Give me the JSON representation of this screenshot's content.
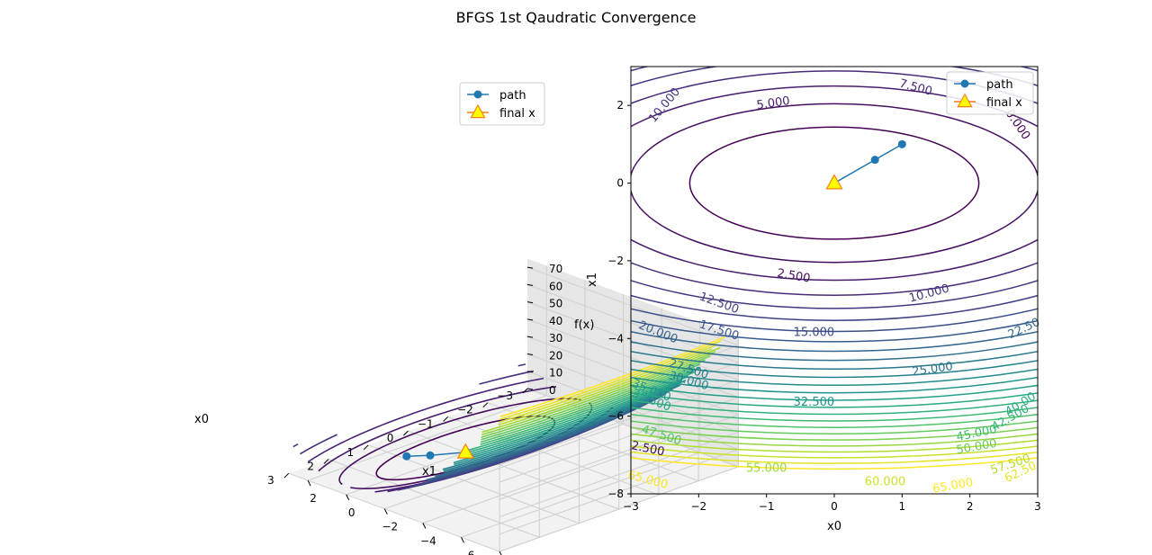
{
  "figure": {
    "title": "BFGS 1st Qaudratic Convergence"
  },
  "colors": {
    "path": "#1f77b4",
    "final_fill": "#ffff00",
    "final_edge": "#ff7f0e",
    "viridis": [
      "#440154",
      "#482878",
      "#3e4989",
      "#31688e",
      "#26828e",
      "#1f9e89",
      "#35b779",
      "#6ece58",
      "#b5de2b",
      "#fde725"
    ]
  },
  "chart_data": [
    {
      "type": "surface3d",
      "xlabel": "x0",
      "ylabel": "x1",
      "zlabel": "f(x)",
      "xlim": [
        -3,
        3
      ],
      "ylim": [
        -8,
        3
      ],
      "zlim": [
        0,
        75
      ],
      "x_ticks": [
        "−3",
        "−2",
        "−1",
        "0",
        "1",
        "2",
        "3"
      ],
      "y_ticks": [
        "−8",
        "−6",
        "−4",
        "−2",
        "0",
        "2"
      ],
      "z_ticks": [
        "0",
        "10",
        "20",
        "30",
        "40",
        "50",
        "60",
        "70"
      ],
      "path": {
        "x0": [
          1.0,
          0.6,
          0.0
        ],
        "x1": [
          1.0,
          0.6,
          0.0
        ]
      },
      "legend": [
        "path",
        "final x"
      ],
      "legend_position": "upper-right"
    },
    {
      "type": "contour",
      "xlabel": "x0",
      "ylabel": "x1",
      "xlim": [
        -3,
        3
      ],
      "ylim": [
        -8,
        3
      ],
      "x_ticks": [
        "−3",
        "−2",
        "−1",
        "0",
        "1",
        "2",
        "3"
      ],
      "y_ticks": [
        "−8",
        "−6",
        "−4",
        "−2",
        "0",
        "2"
      ],
      "levels": [
        2.5,
        5,
        7.5,
        10,
        12.5,
        15,
        17.5,
        20,
        22.5,
        25,
        27.5,
        30,
        32.5,
        35,
        37.5,
        40,
        42.5,
        45,
        47.5,
        50,
        52.5,
        55,
        57.5,
        60,
        62.5,
        65
      ],
      "labels": [
        {
          "text": "2.500",
          "x0": -0.6,
          "x1": -2.4,
          "rot": 10
        },
        {
          "text": "5.000",
          "x0": -0.9,
          "x1": 2.05,
          "rot": -8
        },
        {
          "text": "7.500",
          "x0": 1.2,
          "x1": 2.45,
          "rot": 15
        },
        {
          "text": "10.000",
          "x0": -2.5,
          "x1": 2.0,
          "rot": -50
        },
        {
          "text": "10.000",
          "x0": 1.4,
          "x1": -2.85,
          "rot": -15
        },
        {
          "text": "0.000",
          "x0": 2.7,
          "x1": 1.5,
          "rot": 55
        },
        {
          "text": "12.500",
          "x0": -1.7,
          "x1": -3.1,
          "rot": 20
        },
        {
          "text": "15.000",
          "x0": -0.3,
          "x1": -3.85,
          "rot": 0
        },
        {
          "text": "17.500",
          "x0": -1.7,
          "x1": -3.8,
          "rot": 18
        },
        {
          "text": "20.000",
          "x0": -2.6,
          "x1": -3.85,
          "rot": 22
        },
        {
          "text": "22.50",
          "x0": 2.8,
          "x1": -3.75,
          "rot": -25
        },
        {
          "text": "25.000",
          "x0": 1.45,
          "x1": -4.8,
          "rot": -8
        },
        {
          "text": "27.500",
          "x0": -2.15,
          "x1": -4.8,
          "rot": 18
        },
        {
          "text": "30.000",
          "x0": -2.15,
          "x1": -5.1,
          "rot": 16
        },
        {
          "text": "32.500",
          "x0": -0.3,
          "x1": -5.65,
          "rot": 0
        },
        {
          "text": "35.000",
          "x0": -2.7,
          "x1": -5.35,
          "rot": 22
        },
        {
          "text": "37.500",
          "x0": -2.7,
          "x1": -5.6,
          "rot": 22
        },
        {
          "text": "40.00",
          "x0": 2.75,
          "x1": -5.7,
          "rot": -32
        },
        {
          "text": "42.500",
          "x0": 2.6,
          "x1": -6.05,
          "rot": -30
        },
        {
          "text": "45.000",
          "x0": 2.1,
          "x1": -6.45,
          "rot": -12
        },
        {
          "text": "47.500",
          "x0": -2.55,
          "x1": -6.5,
          "rot": 18
        },
        {
          "text": "50.000",
          "x0": 2.1,
          "x1": -6.8,
          "rot": -10
        },
        {
          "text": "2.500",
          "x0": -2.75,
          "x1": -6.85,
          "rot": 12
        },
        {
          "text": "55.000",
          "x0": -1.0,
          "x1": -7.35,
          "rot": 0
        },
        {
          "text": "57.500",
          "x0": 2.6,
          "x1": -7.25,
          "rot": -18
        },
        {
          "text": "60.000",
          "x0": 0.75,
          "x1": -7.7,
          "rot": 0
        },
        {
          "text": "62.50",
          "x0": 2.75,
          "x1": -7.45,
          "rot": -25
        },
        {
          "text": "65.000",
          "x0": -2.75,
          "x1": -7.65,
          "rot": 15
        },
        {
          "text": "65.000",
          "x0": 1.75,
          "x1": -7.8,
          "rot": -10
        }
      ],
      "path": {
        "x0": [
          1.0,
          0.6,
          0.0
        ],
        "x1": [
          1.0,
          0.6,
          0.0
        ]
      },
      "final_x": {
        "x0": 0.0,
        "x1": 0.0
      },
      "legend": [
        "path",
        "final x"
      ],
      "legend_position": "upper-right"
    }
  ]
}
